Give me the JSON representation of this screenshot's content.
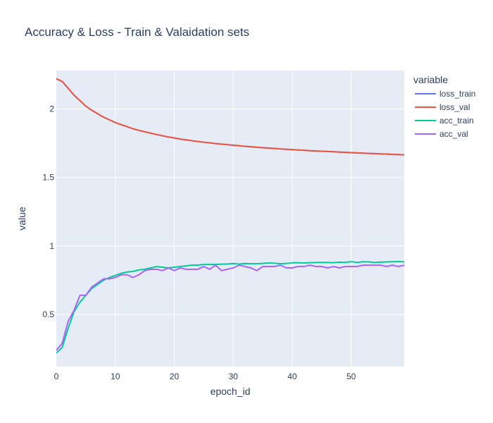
{
  "chart_data": {
    "type": "line",
    "title": "Accuracy & Loss - Train & Valaidation sets",
    "xlabel": "epoch_id",
    "ylabel": "value",
    "legend_title": "variable",
    "legend_position": "right",
    "xlim": [
      0,
      59
    ],
    "ylim": [
      0.12,
      2.28
    ],
    "x_ticks": [
      0,
      10,
      20,
      30,
      40,
      50
    ],
    "y_ticks": [
      0.5,
      1,
      1.5,
      2
    ],
    "y_tick_labels": [
      "0.5",
      "1",
      "1.5",
      "2"
    ],
    "grid": true,
    "plot_bg": "#e5ecf6",
    "series": [
      {
        "name": "loss_train",
        "color": "#636efa",
        "values": [
          2.22,
          2.2,
          2.15,
          2.1,
          2.06,
          2.02,
          1.99,
          1.965,
          1.94,
          1.92,
          1.9,
          1.885,
          1.87,
          1.855,
          1.843,
          1.833,
          1.823,
          1.813,
          1.804,
          1.795,
          1.788,
          1.78,
          1.774,
          1.768,
          1.762,
          1.757,
          1.752,
          1.747,
          1.743,
          1.739,
          1.735,
          1.731,
          1.727,
          1.724,
          1.72,
          1.717,
          1.714,
          1.711,
          1.708,
          1.705,
          1.703,
          1.7,
          1.698,
          1.695,
          1.693,
          1.691,
          1.689,
          1.687,
          1.685,
          1.683,
          1.681,
          1.679,
          1.677,
          1.675,
          1.674,
          1.672,
          1.67,
          1.668,
          1.667,
          1.665
        ]
      },
      {
        "name": "loss_val",
        "color": "#ef553b",
        "values": [
          2.22,
          2.2,
          2.15,
          2.1,
          2.06,
          2.02,
          1.99,
          1.965,
          1.94,
          1.92,
          1.9,
          1.885,
          1.87,
          1.855,
          1.843,
          1.833,
          1.823,
          1.813,
          1.804,
          1.795,
          1.788,
          1.78,
          1.774,
          1.768,
          1.762,
          1.757,
          1.752,
          1.747,
          1.743,
          1.739,
          1.735,
          1.731,
          1.727,
          1.724,
          1.72,
          1.717,
          1.714,
          1.711,
          1.708,
          1.705,
          1.703,
          1.7,
          1.698,
          1.695,
          1.693,
          1.691,
          1.689,
          1.687,
          1.685,
          1.683,
          1.681,
          1.679,
          1.677,
          1.675,
          1.674,
          1.672,
          1.67,
          1.668,
          1.667,
          1.665
        ]
      },
      {
        "name": "acc_train",
        "color": "#00cc96",
        "values": [
          0.22,
          0.26,
          0.4,
          0.52,
          0.59,
          0.64,
          0.69,
          0.72,
          0.75,
          0.77,
          0.785,
          0.8,
          0.81,
          0.815,
          0.825,
          0.83,
          0.84,
          0.85,
          0.845,
          0.84,
          0.845,
          0.85,
          0.855,
          0.86,
          0.86,
          0.865,
          0.865,
          0.866,
          0.867,
          0.868,
          0.872,
          0.868,
          0.872,
          0.87,
          0.871,
          0.873,
          0.876,
          0.874,
          0.87,
          0.873,
          0.877,
          0.878,
          0.876,
          0.878,
          0.879,
          0.88,
          0.879,
          0.878,
          0.882,
          0.88,
          0.886,
          0.879,
          0.885,
          0.884,
          0.879,
          0.882,
          0.884,
          0.885,
          0.886,
          0.884
        ]
      },
      {
        "name": "acc_val",
        "color": "#ab63fa",
        "values": [
          0.24,
          0.29,
          0.45,
          0.53,
          0.64,
          0.64,
          0.7,
          0.73,
          0.76,
          0.76,
          0.77,
          0.79,
          0.79,
          0.77,
          0.79,
          0.82,
          0.83,
          0.83,
          0.82,
          0.84,
          0.82,
          0.84,
          0.83,
          0.83,
          0.83,
          0.85,
          0.83,
          0.86,
          0.82,
          0.83,
          0.84,
          0.86,
          0.85,
          0.84,
          0.82,
          0.85,
          0.85,
          0.85,
          0.86,
          0.84,
          0.84,
          0.85,
          0.85,
          0.86,
          0.85,
          0.85,
          0.84,
          0.85,
          0.84,
          0.85,
          0.85,
          0.85,
          0.86,
          0.86,
          0.86,
          0.86,
          0.85,
          0.86,
          0.85,
          0.86
        ]
      }
    ]
  }
}
